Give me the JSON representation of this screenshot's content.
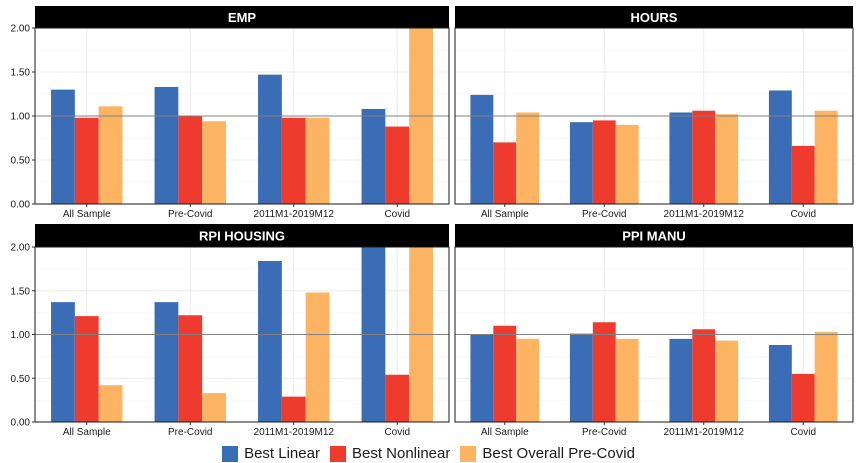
{
  "chart_data": {
    "type": "bar",
    "facet_layout": "2x2",
    "categories": [
      "All Sample",
      "Pre-Covid",
      "2011M1-2019M12",
      "Covid"
    ],
    "ylim": [
      0,
      2
    ],
    "yticks": [
      "0.00",
      "0.50",
      "1.00",
      "1.50",
      "2.00"
    ],
    "reference_line": 1.0,
    "grid": true,
    "legend_position": "bottom",
    "legend": [
      {
        "name": "Best Linear",
        "color": "#3A6DB5"
      },
      {
        "name": "Best Nonlinear",
        "color": "#EE3B2E"
      },
      {
        "name": "Best Overall Pre-Covid",
        "color": "#FDB462"
      }
    ],
    "panels": [
      {
        "title": "EMP",
        "series": [
          {
            "name": "Best Linear",
            "values": [
              1.3,
              1.33,
              1.47,
              1.08
            ]
          },
          {
            "name": "Best Nonlinear",
            "values": [
              0.98,
              1.0,
              0.98,
              0.88
            ]
          },
          {
            "name": "Best Overall Pre-Covid",
            "values": [
              1.11,
              0.94,
              0.98,
              2.0
            ]
          }
        ]
      },
      {
        "title": "HOURS",
        "series": [
          {
            "name": "Best Linear",
            "values": [
              1.24,
              0.93,
              1.04,
              1.29
            ]
          },
          {
            "name": "Best Nonlinear",
            "values": [
              0.7,
              0.95,
              1.06,
              0.66
            ]
          },
          {
            "name": "Best Overall Pre-Covid",
            "values": [
              1.04,
              0.9,
              1.02,
              1.06
            ]
          }
        ]
      },
      {
        "title": "RPI HOUSING",
        "series": [
          {
            "name": "Best Linear",
            "values": [
              1.37,
              1.37,
              1.84,
              2.0
            ]
          },
          {
            "name": "Best Nonlinear",
            "values": [
              1.21,
              1.22,
              0.29,
              0.54
            ]
          },
          {
            "name": "Best Overall Pre-Covid",
            "values": [
              0.42,
              0.33,
              1.48,
              2.0
            ]
          }
        ]
      },
      {
        "title": "PPI MANU",
        "series": [
          {
            "name": "Best Linear",
            "values": [
              1.0,
              1.01,
              0.95,
              0.88
            ]
          },
          {
            "name": "Best Nonlinear",
            "values": [
              1.1,
              1.14,
              1.06,
              0.55
            ]
          },
          {
            "name": "Best Overall Pre-Covid",
            "values": [
              0.95,
              0.95,
              0.93,
              1.03
            ]
          }
        ]
      }
    ]
  }
}
